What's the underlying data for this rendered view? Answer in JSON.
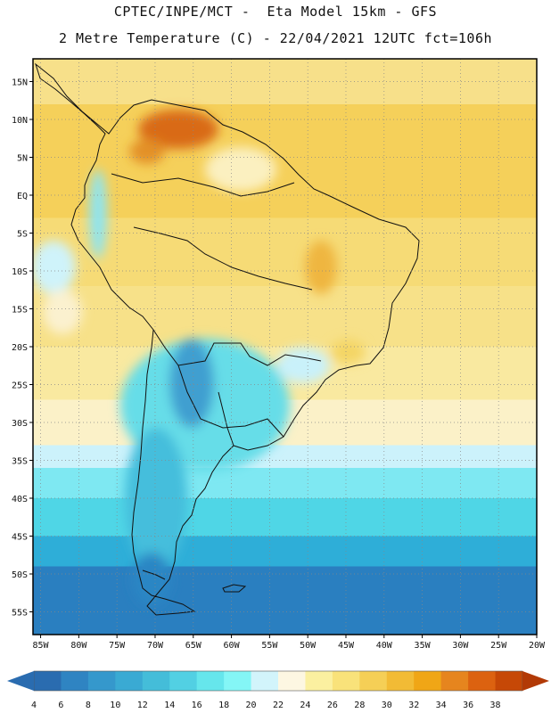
{
  "header": {
    "line1": "CPTEC/INPE/MCT -  Eta Model 15km - GFS",
    "line2": "2 Metre Temperature (C) - 22/04/2021 12UTC fct=106h"
  },
  "map": {
    "region": "South America",
    "lat_range": [
      -58,
      18
    ],
    "lon_range": [
      -86,
      -20
    ],
    "lat_ticks": [
      {
        "value": 15,
        "label": "15N"
      },
      {
        "value": 10,
        "label": "10N"
      },
      {
        "value": 5,
        "label": "5N"
      },
      {
        "value": 0,
        "label": "EQ"
      },
      {
        "value": -5,
        "label": "5S"
      },
      {
        "value": -10,
        "label": "10S"
      },
      {
        "value": -15,
        "label": "15S"
      },
      {
        "value": -20,
        "label": "20S"
      },
      {
        "value": -25,
        "label": "25S"
      },
      {
        "value": -30,
        "label": "30S"
      },
      {
        "value": -35,
        "label": "35S"
      },
      {
        "value": -40,
        "label": "40S"
      },
      {
        "value": -45,
        "label": "45S"
      },
      {
        "value": -50,
        "label": "50S"
      },
      {
        "value": -55,
        "label": "55S"
      }
    ],
    "lon_ticks": [
      {
        "value": -85,
        "label": "85W"
      },
      {
        "value": -80,
        "label": "80W"
      },
      {
        "value": -75,
        "label": "75W"
      },
      {
        "value": -70,
        "label": "70W"
      },
      {
        "value": -65,
        "label": "65W"
      },
      {
        "value": -60,
        "label": "60W"
      },
      {
        "value": -55,
        "label": "55W"
      },
      {
        "value": -50,
        "label": "50W"
      },
      {
        "value": -45,
        "label": "45W"
      },
      {
        "value": -40,
        "label": "40W"
      },
      {
        "value": -35,
        "label": "35W"
      },
      {
        "value": -30,
        "label": "30W"
      },
      {
        "value": -25,
        "label": "25W"
      },
      {
        "value": -20,
        "label": "20W"
      }
    ],
    "temperature_bands": [
      {
        "lat_top": 18,
        "lat_bottom": 12,
        "color": "#f7e08a"
      },
      {
        "lat_top": 12,
        "lat_bottom": -3,
        "color": "#f5d05a"
      },
      {
        "lat_top": -3,
        "lat_bottom": -12,
        "color": "#f6db76"
      },
      {
        "lat_top": -12,
        "lat_bottom": -20,
        "color": "#f7e189"
      },
      {
        "lat_top": -20,
        "lat_bottom": -27,
        "color": "#f9e9a0"
      },
      {
        "lat_top": -27,
        "lat_bottom": -33,
        "color": "#fbf1c8"
      },
      {
        "lat_top": -33,
        "lat_bottom": -36,
        "color": "#ccf2fb"
      },
      {
        "lat_top": -36,
        "lat_bottom": -40,
        "color": "#7ee8f2"
      },
      {
        "lat_top": -40,
        "lat_bottom": -45,
        "color": "#4fd6e6"
      },
      {
        "lat_top": -45,
        "lat_bottom": -49,
        "color": "#2eaed8"
      },
      {
        "lat_top": -49,
        "lat_bottom": -58,
        "color": "#2a7fc0"
      }
    ]
  },
  "colorbar": {
    "labels": [
      "4",
      "6",
      "8",
      "10",
      "12",
      "14",
      "16",
      "18",
      "20",
      "22",
      "24",
      "26",
      "28",
      "30",
      "32",
      "34",
      "36",
      "38"
    ],
    "colors": [
      "#2a6cb0",
      "#2f84c2",
      "#3598cc",
      "#3aaad3",
      "#44bdd9",
      "#52d0e3",
      "#66e6ec",
      "#84f6f6",
      "#d2f4fb",
      "#fdf7e2",
      "#fbf0a0",
      "#f9e27a",
      "#f5cf56",
      "#f2bb35",
      "#f0a616",
      "#e6851e",
      "#dc6210",
      "#c64806"
    ],
    "low_arrow_color": "#2a6cb0",
    "high_arrow_color": "#b23a06"
  }
}
